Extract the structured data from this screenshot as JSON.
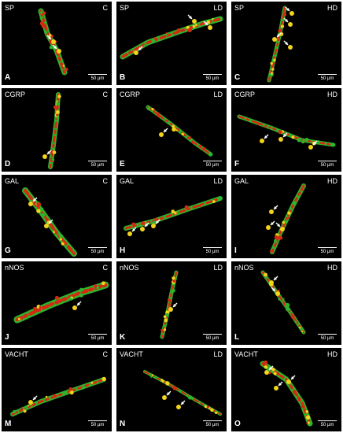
{
  "colors": {
    "background": "#000000",
    "green": "#2db52d",
    "red": "#d42a12",
    "yellow": "#f2d41c",
    "text": "#ffffff"
  },
  "scale_label": "50 μm",
  "arrow_icon": "white-arrow-icon",
  "panels": [
    {
      "letter": "A",
      "marker": "SP",
      "group": "C",
      "arrows": 2
    },
    {
      "letter": "B",
      "marker": "SP",
      "group": "LD",
      "arrows": 3
    },
    {
      "letter": "C",
      "marker": "SP",
      "group": "HD",
      "arrows": 4
    },
    {
      "letter": "D",
      "marker": "CGRP",
      "group": "C",
      "arrows": 1
    },
    {
      "letter": "E",
      "marker": "CGRP",
      "group": "LD",
      "arrows": 1
    },
    {
      "letter": "F",
      "marker": "CGRP",
      "group": "HD",
      "arrows": 3
    },
    {
      "letter": "G",
      "marker": "GAL",
      "group": "C",
      "arrows": 2
    },
    {
      "letter": "H",
      "marker": "GAL",
      "group": "LD",
      "arrows": 3
    },
    {
      "letter": "I",
      "marker": "GAL",
      "group": "HD",
      "arrows": 3
    },
    {
      "letter": "J",
      "marker": "nNOS",
      "group": "C",
      "arrows": 1
    },
    {
      "letter": "K",
      "marker": "nNOS",
      "group": "LD",
      "arrows": 1
    },
    {
      "letter": "L",
      "marker": "nNOS",
      "group": "HD",
      "arrows": 2
    },
    {
      "letter": "M",
      "marker": "VACHT",
      "group": "C",
      "arrows": 1
    },
    {
      "letter": "N",
      "marker": "VACHT",
      "group": "LD",
      "arrows": 2
    },
    {
      "letter": "O",
      "marker": "VACHT",
      "group": "HD",
      "arrows": 3
    }
  ]
}
